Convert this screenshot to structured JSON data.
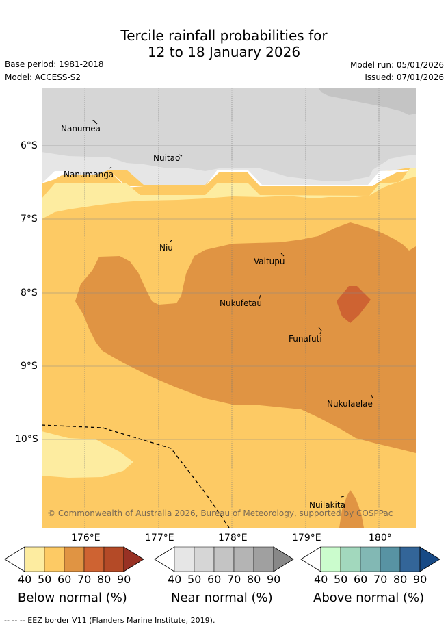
{
  "title": {
    "line1": "Tercile rainfall probabilities for",
    "line2": "12 to 18 January 2026"
  },
  "meta": {
    "base_period": "Base period: 1981-2018",
    "model": "Model: ACCESS-S2",
    "model_run": "Model run: 05/01/2026",
    "issued": "Issued: 07/01/2026"
  },
  "map": {
    "lat_ticks": [
      "6°S",
      "7°S",
      "8°S",
      "9°S",
      "10°S"
    ],
    "lon_ticks": [
      "176°E",
      "177°E",
      "178°E",
      "179°E",
      "180°"
    ],
    "places": [
      "Nanumea",
      "Nuitao",
      "Nanumanga",
      "Niu",
      "Vaitupu",
      "Nukufetau",
      "Funafuti",
      "Nukulaelae",
      "Nuilakita"
    ],
    "copyright": "© Commonwealth of Australia 2026, Bureau of Meteorology, supported by COSPPac",
    "colors": {
      "below_40_50": "#fdeca0",
      "below_50_60": "#fdca64",
      "below_60_70": "#e09443",
      "below_70_80": "#ce6332",
      "near_50_60": "#d6d6d6",
      "near_60_70": "#c4c4c4",
      "near_40_50": "#e6e6e6"
    }
  },
  "colorbars": [
    {
      "title": "Below normal (%)",
      "labels": [
        "40",
        "50",
        "60",
        "70",
        "80",
        "90"
      ],
      "colors": [
        "#ffffff",
        "#fdeca0",
        "#fdca64",
        "#e09443",
        "#ce6332",
        "#b44a27",
        "#983124"
      ]
    },
    {
      "title": "Near normal (%)",
      "labels": [
        "40",
        "50",
        "60",
        "70",
        "80",
        "90"
      ],
      "colors": [
        "#ffffff",
        "#e6e6e6",
        "#d6d6d6",
        "#c4c4c4",
        "#b4b4b4",
        "#a0a0a0",
        "#888888"
      ]
    },
    {
      "title": "Above normal (%)",
      "labels": [
        "40",
        "50",
        "60",
        "70",
        "80",
        "90"
      ],
      "colors": [
        "#ffffff",
        "#cbfccd",
        "#a2d8bd",
        "#82b8b4",
        "#5893a3",
        "#336598",
        "#174a86"
      ]
    }
  ],
  "footer": "--  --  -- EEZ border V11 (Flanders Marine Institute, 2019)."
}
